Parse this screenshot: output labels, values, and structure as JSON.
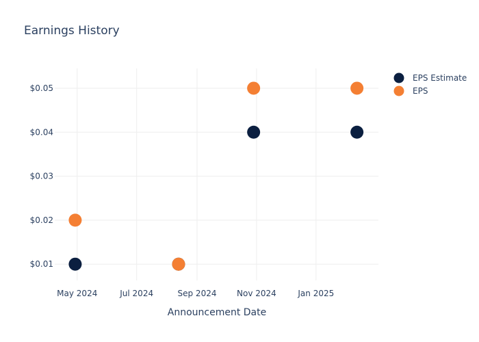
{
  "chart_data": {
    "type": "scatter",
    "title": "Earnings History",
    "xlabel": "Announcement Date",
    "ylabel": "",
    "x_ticks": [
      {
        "date": "2024-05-01",
        "label": "May 2024"
      },
      {
        "date": "2024-07-01",
        "label": "Jul 2024"
      },
      {
        "date": "2024-09-01",
        "label": "Sep 2024"
      },
      {
        "date": "2024-11-01",
        "label": "Nov 2024"
      },
      {
        "date": "2025-01-01",
        "label": "Jan 2025"
      }
    ],
    "y_ticks": [
      {
        "value": 0.01,
        "label": "$0.01"
      },
      {
        "value": 0.02,
        "label": "$0.02"
      },
      {
        "value": 0.03,
        "label": "$0.03"
      },
      {
        "value": 0.04,
        "label": "$0.04"
      },
      {
        "value": 0.05,
        "label": "$0.05"
      }
    ],
    "xlim": [
      "2024-04-08",
      "2025-03-06"
    ],
    "ylim": [
      0.0063,
      0.0545
    ],
    "grid": true,
    "legend_position": "top-right",
    "series": [
      {
        "name": "EPS Estimate",
        "color": "#0b1f40",
        "points": [
          {
            "x": "2024-04-29",
            "y": 0.01
          },
          {
            "x": "2024-08-13",
            "y": 0.01
          },
          {
            "x": "2024-10-29",
            "y": 0.04
          },
          {
            "x": "2025-02-12",
            "y": 0.04
          }
        ]
      },
      {
        "name": "EPS",
        "color": "#f47f33",
        "points": [
          {
            "x": "2024-04-29",
            "y": 0.02
          },
          {
            "x": "2024-08-13",
            "y": 0.01
          },
          {
            "x": "2024-10-29",
            "y": 0.05
          },
          {
            "x": "2025-02-12",
            "y": 0.05
          }
        ]
      }
    ]
  }
}
